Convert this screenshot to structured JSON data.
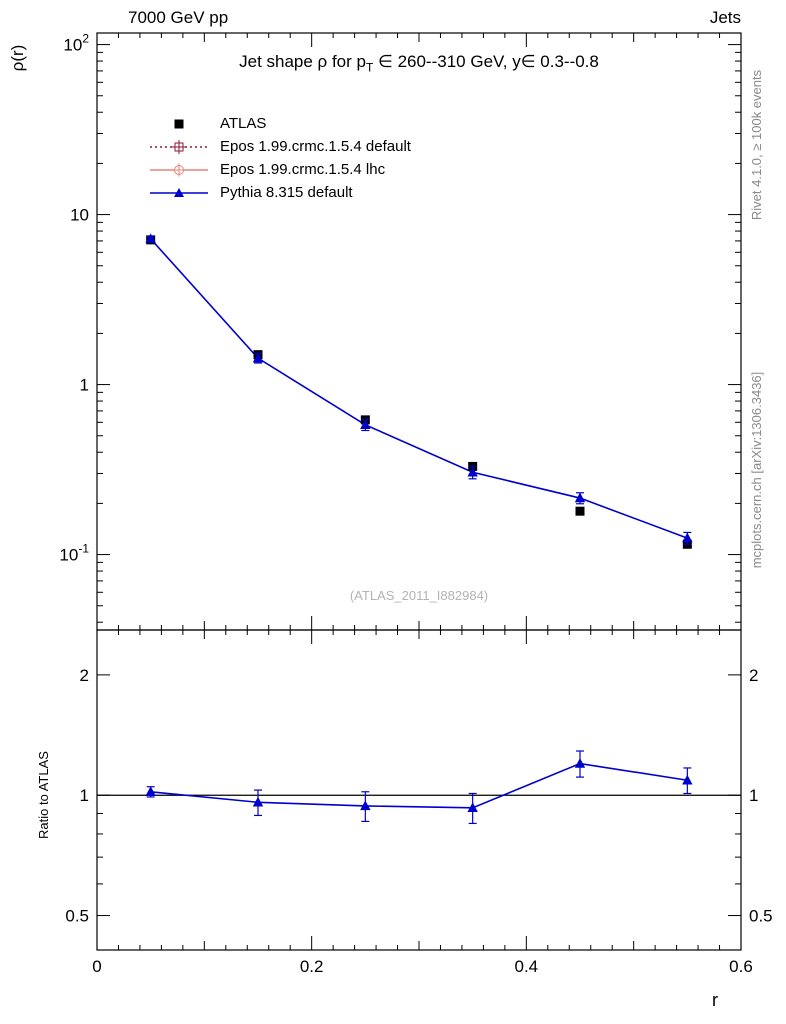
{
  "header": {
    "left_title": "7000 GeV pp",
    "right_title": "Jets"
  },
  "sidebar_right": {
    "top_note": "Rivet 4.1.0, ≥ 100k events",
    "bottom_note": "mcplots.cern.ch [arXiv:1306.3436]"
  },
  "main_panel": {
    "title_prefix": "Jet shape ρ for p",
    "title_sub": "T",
    "title_suffix": " ∈ 260--310 GeV, y∈ 0.3--0.8",
    "ylabel": "ρ(r)",
    "watermark": "(ATLAS_2011_I882984)"
  },
  "ratio_panel": {
    "ylabel": "Ratio to ATLAS"
  },
  "x_axis": {
    "label": "r"
  },
  "legend": [
    {
      "label": "ATLAS",
      "marker": "square",
      "color": "#000000",
      "line": "none"
    },
    {
      "label": "Epos 1.99.crmc.1.5.4 default",
      "marker": "boxplus",
      "color": "#8b1a2f",
      "line": "dotted"
    },
    {
      "label": "Epos 1.99.crmc.1.5.4 lhc",
      "marker": "circleplus",
      "color": "#e8837a",
      "line": "solid"
    },
    {
      "label": "Pythia 8.315 default",
      "marker": "triangle",
      "color": "#0000cc",
      "line": "solid"
    }
  ],
  "chart_data": {
    "type": "line",
    "title": "Jet shape ρ for pT ∈ 260--310 GeV, y∈ 0.3--0.8",
    "xlabel": "r",
    "ylabel_main": "ρ(r)",
    "ylabel_ratio": "Ratio to ATLAS",
    "yscale": "log",
    "xlim": [
      0,
      0.6
    ],
    "ylim_main": [
      0.036,
      117
    ],
    "ylim_ratio": [
      0.41,
      2.59
    ],
    "x": [
      0.05,
      0.15,
      0.25,
      0.35,
      0.45,
      0.55
    ],
    "x_tick_values": [
      0,
      0.2,
      0.4,
      0.6
    ],
    "x_tick_labels": [
      "0",
      "0.2",
      "0.4",
      "0.6"
    ],
    "y_ticks_main": [
      {
        "v": 100,
        "base": "10",
        "exp": "2"
      },
      {
        "v": 10,
        "base": "10",
        "exp": ""
      },
      {
        "v": 1,
        "base": "1",
        "exp": ""
      },
      {
        "v": 0.1,
        "base": "10",
        "exp": "-1"
      }
    ],
    "y_ticks_ratio": [
      {
        "v": 2,
        "label": "2"
      },
      {
        "v": 1,
        "label": "1"
      },
      {
        "v": 0.5,
        "label": "0.5"
      }
    ],
    "series": [
      {
        "name": "ATLAS",
        "role": "reference",
        "color": "#000000",
        "marker": "square",
        "values": [
          7.1,
          1.5,
          0.62,
          0.33,
          0.18,
          0.115
        ],
        "errors": [
          0.15,
          0.04,
          0.018,
          0.01,
          0.006,
          0.004
        ]
      },
      {
        "name": "Epos 1.99.crmc.1.5.4 default",
        "color": "#8b1a2f",
        "style": "dotted",
        "marker": "boxplus",
        "values": []
      },
      {
        "name": "Epos 1.99.crmc.1.5.4 lhc",
        "color": "#e8837a",
        "style": "solid",
        "marker": "circleplus",
        "values": []
      },
      {
        "name": "Pythia 8.315 default",
        "color": "#0000cc",
        "style": "solid",
        "marker": "triangle",
        "values": [
          7.2,
          1.43,
          0.58,
          0.305,
          0.215,
          0.125
        ],
        "errors": [
          0.2,
          0.09,
          0.043,
          0.026,
          0.016,
          0.01
        ],
        "ratio": [
          1.02,
          0.96,
          0.94,
          0.93,
          1.2,
          1.09
        ],
        "ratio_errors": [
          0.03,
          0.07,
          0.08,
          0.08,
          0.09,
          0.08
        ]
      }
    ]
  }
}
